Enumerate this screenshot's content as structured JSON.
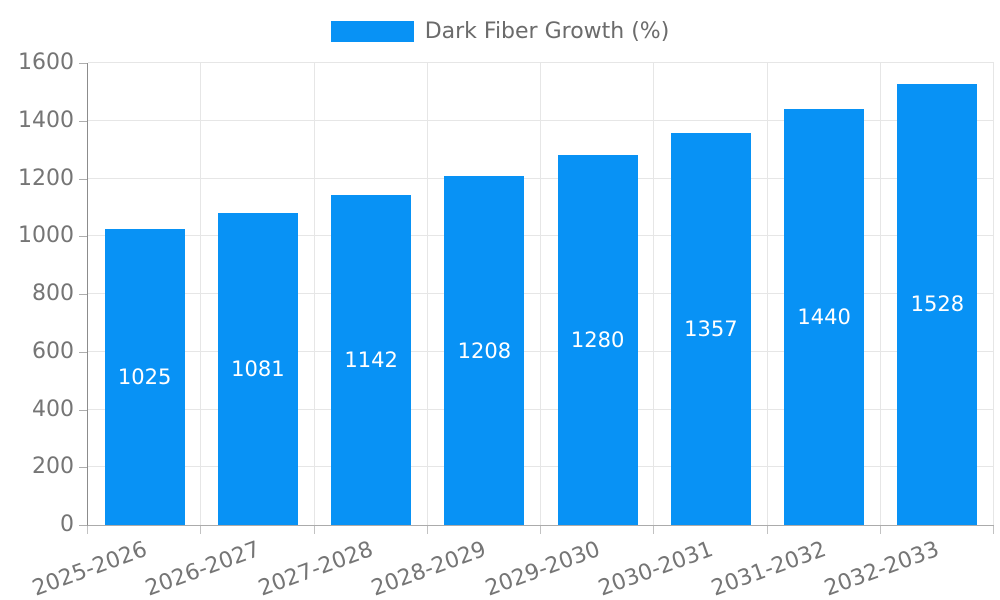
{
  "legend": {
    "label": "Dark Fiber Growth (%)"
  },
  "chart_data": {
    "type": "bar",
    "title": "",
    "categories": [
      "2025-2026",
      "2026-2027",
      "2027-2028",
      "2028-2029",
      "2029-2030",
      "2030-2031",
      "2031-2032",
      "2032-2033"
    ],
    "series": [
      {
        "name": "Dark Fiber Growth (%)",
        "values": [
          1025,
          1081,
          1142,
          1208,
          1280,
          1357,
          1440,
          1528
        ]
      }
    ],
    "value_labels_shown": true,
    "xlabel": "",
    "ylabel": "",
    "ylim": [
      0,
      1600
    ],
    "yticks": [
      0,
      200,
      400,
      600,
      800,
      1000,
      1200,
      1400,
      1600
    ],
    "grid": true,
    "legend_position": "top",
    "x_tick_rotation_deg": -20
  },
  "colors": {
    "bar": "#0892f5",
    "value_label": "#ffffff",
    "tick_label": "#757575",
    "legend_label": "#6b6b6b",
    "gridline": "#e6e6e6",
    "axis": "#8c8c8c"
  }
}
